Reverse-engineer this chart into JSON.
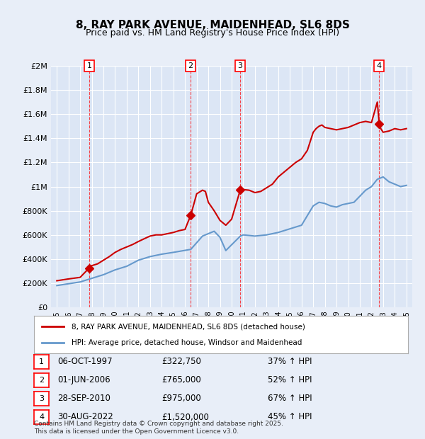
{
  "title": "8, RAY PARK AVENUE, MAIDENHEAD, SL6 8DS",
  "subtitle": "Price paid vs. HM Land Registry's House Price Index (HPI)",
  "xlabel": "",
  "ylabel": "",
  "bg_color": "#e8eef8",
  "plot_bg_color": "#dce6f5",
  "grid_color": "#ffffff",
  "red_line_color": "#cc0000",
  "blue_line_color": "#6699cc",
  "red_dot_color": "#cc0000",
  "sale_dates": [
    "1997-10-06",
    "2006-06-01",
    "2010-09-28",
    "2022-08-30"
  ],
  "sale_prices": [
    322750,
    765000,
    975000,
    1520000
  ],
  "sale_labels": [
    "1",
    "2",
    "3",
    "4"
  ],
  "sale_info": [
    {
      "num": "1",
      "date": "06-OCT-1997",
      "price": "£322,750",
      "pct": "37% ↑ HPI"
    },
    {
      "num": "2",
      "date": "01-JUN-2006",
      "price": "£765,000",
      "pct": "52% ↑ HPI"
    },
    {
      "num": "3",
      "date": "28-SEP-2010",
      "price": "£975,000",
      "pct": "67% ↑ HPI"
    },
    {
      "num": "4",
      "date": "30-AUG-2022",
      "price": "£1,520,000",
      "pct": "45% ↑ HPI"
    }
  ],
  "legend_entries": [
    "8, RAY PARK AVENUE, MAIDENHEAD, SL6 8DS (detached house)",
    "HPI: Average price, detached house, Windsor and Maidenhead"
  ],
  "footnote": "Contains HM Land Registry data © Crown copyright and database right 2025.\nThis data is licensed under the Open Government Licence v3.0.",
  "ylim": [
    0,
    2000000
  ],
  "yticks": [
    0,
    200000,
    400000,
    600000,
    800000,
    1000000,
    1200000,
    1400000,
    1600000,
    1800000,
    2000000
  ],
  "ytick_labels": [
    "£0",
    "£200K",
    "£400K",
    "£600K",
    "£800K",
    "£1M",
    "£1.2M",
    "£1.4M",
    "£1.6M",
    "£1.8M",
    "£2M"
  ]
}
